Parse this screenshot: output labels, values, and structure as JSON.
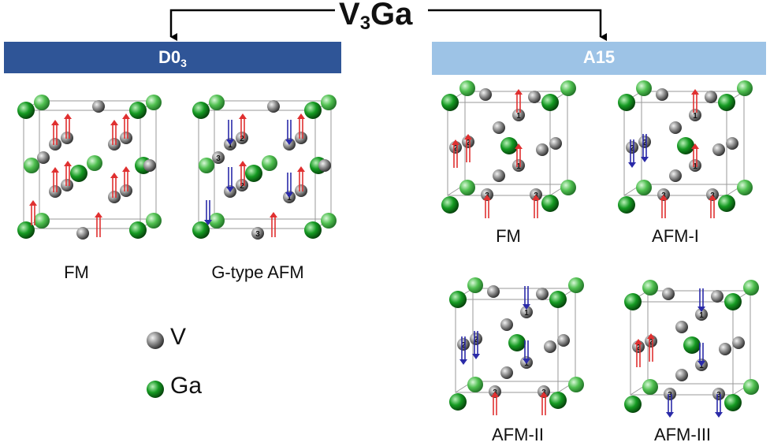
{
  "title": {
    "main": "V",
    "sub": "3",
    "tail": "Ga"
  },
  "left_group": {
    "header_main": "D0",
    "header_sub": "3",
    "structures": [
      {
        "label": "FM"
      },
      {
        "label": "G-type AFM"
      }
    ]
  },
  "right_group": {
    "header": "A15",
    "structures": [
      {
        "label": "FM"
      },
      {
        "label": "AFM-I"
      },
      {
        "label": "AFM-II"
      },
      {
        "label": "AFM-III"
      }
    ]
  },
  "legend": [
    {
      "label": "V",
      "color": "#808080"
    },
    {
      "label": "Ga",
      "color": "#0f8a1e"
    }
  ],
  "site_numbers": [
    "1",
    "2",
    "3"
  ],
  "colors": {
    "d03_bar": "#2f5597",
    "a15_bar": "#9dc3e6",
    "spin_up": "#e03030",
    "spin_down": "#2a2aa8",
    "ga": "#0f8a1e",
    "v": "#808080"
  }
}
